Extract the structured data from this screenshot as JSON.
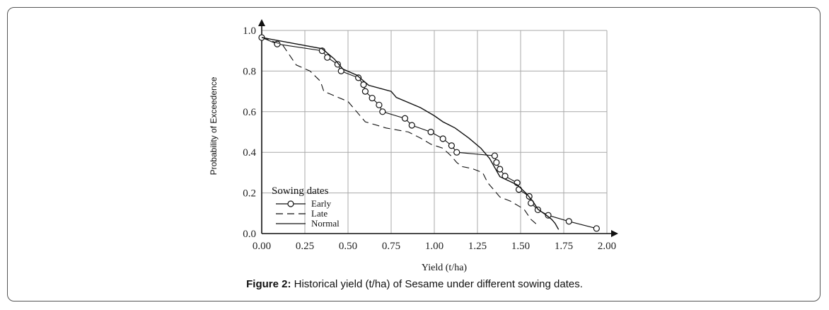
{
  "caption": {
    "label": "Figure 2:",
    "text": " Historical yield (t/ha) of Sesame under different sowing dates."
  },
  "chart_data": {
    "type": "line",
    "xlabel": "Yield (t/ha)",
    "ylabel": "Probability of Exceedence",
    "xlim": [
      0,
      2
    ],
    "ylim": [
      0,
      1
    ],
    "xticks": [
      "0.00",
      "0.25",
      "0.50",
      "0.75",
      "1.00",
      "1.25",
      "1.50",
      "1.75",
      "2.00"
    ],
    "yticks": [
      "0.0",
      "0.2",
      "0.4",
      "0.6",
      "0.8",
      "1.0"
    ],
    "grid": true,
    "legend": {
      "title": "Sowing dates",
      "placement": "bottom-left",
      "entries": [
        "Early",
        "Late",
        "Normal"
      ]
    },
    "series": [
      {
        "name": "Early",
        "style": "solid-circle-markers",
        "x": [
          0.0,
          0.09,
          0.35,
          0.38,
          0.44,
          0.46,
          0.56,
          0.59,
          0.6,
          0.64,
          0.68,
          0.7,
          0.83,
          0.87,
          0.98,
          1.05,
          1.1,
          1.13,
          1.35,
          1.36,
          1.38,
          1.41,
          1.48,
          1.49,
          1.55,
          1.56,
          1.6,
          1.66,
          1.78,
          1.94
        ],
        "y": [
          0.965,
          0.933,
          0.9,
          0.867,
          0.833,
          0.8,
          0.767,
          0.733,
          0.7,
          0.667,
          0.633,
          0.6,
          0.567,
          0.533,
          0.5,
          0.467,
          0.433,
          0.4,
          0.383,
          0.35,
          0.317,
          0.283,
          0.25,
          0.217,
          0.183,
          0.15,
          0.117,
          0.09,
          0.06,
          0.025
        ]
      },
      {
        "name": "Late",
        "style": "dashed",
        "x": [
          0.0,
          0.12,
          0.2,
          0.28,
          0.34,
          0.36,
          0.5,
          0.55,
          0.6,
          0.72,
          0.85,
          0.92,
          0.98,
          1.05,
          1.1,
          1.13,
          1.16,
          1.22,
          1.28,
          1.31,
          1.34,
          1.38,
          1.44,
          1.52,
          1.56,
          1.6
        ],
        "y": [
          0.965,
          0.93,
          0.83,
          0.8,
          0.75,
          0.7,
          0.65,
          0.6,
          0.55,
          0.52,
          0.5,
          0.47,
          0.44,
          0.42,
          0.38,
          0.35,
          0.33,
          0.32,
          0.3,
          0.25,
          0.22,
          0.18,
          0.16,
          0.12,
          0.07,
          0.04
        ]
      },
      {
        "name": "Normal",
        "style": "solid",
        "x": [
          0.0,
          0.35,
          0.42,
          0.47,
          0.55,
          0.62,
          0.75,
          0.78,
          0.92,
          1.0,
          1.05,
          1.12,
          1.2,
          1.27,
          1.32,
          1.38,
          1.48,
          1.53,
          1.57,
          1.6,
          1.65,
          1.68,
          1.7,
          1.72
        ],
        "y": [
          0.965,
          0.91,
          0.86,
          0.81,
          0.78,
          0.73,
          0.7,
          0.67,
          0.62,
          0.58,
          0.55,
          0.52,
          0.47,
          0.42,
          0.37,
          0.28,
          0.24,
          0.2,
          0.16,
          0.12,
          0.09,
          0.07,
          0.05,
          0.02
        ]
      }
    ]
  }
}
